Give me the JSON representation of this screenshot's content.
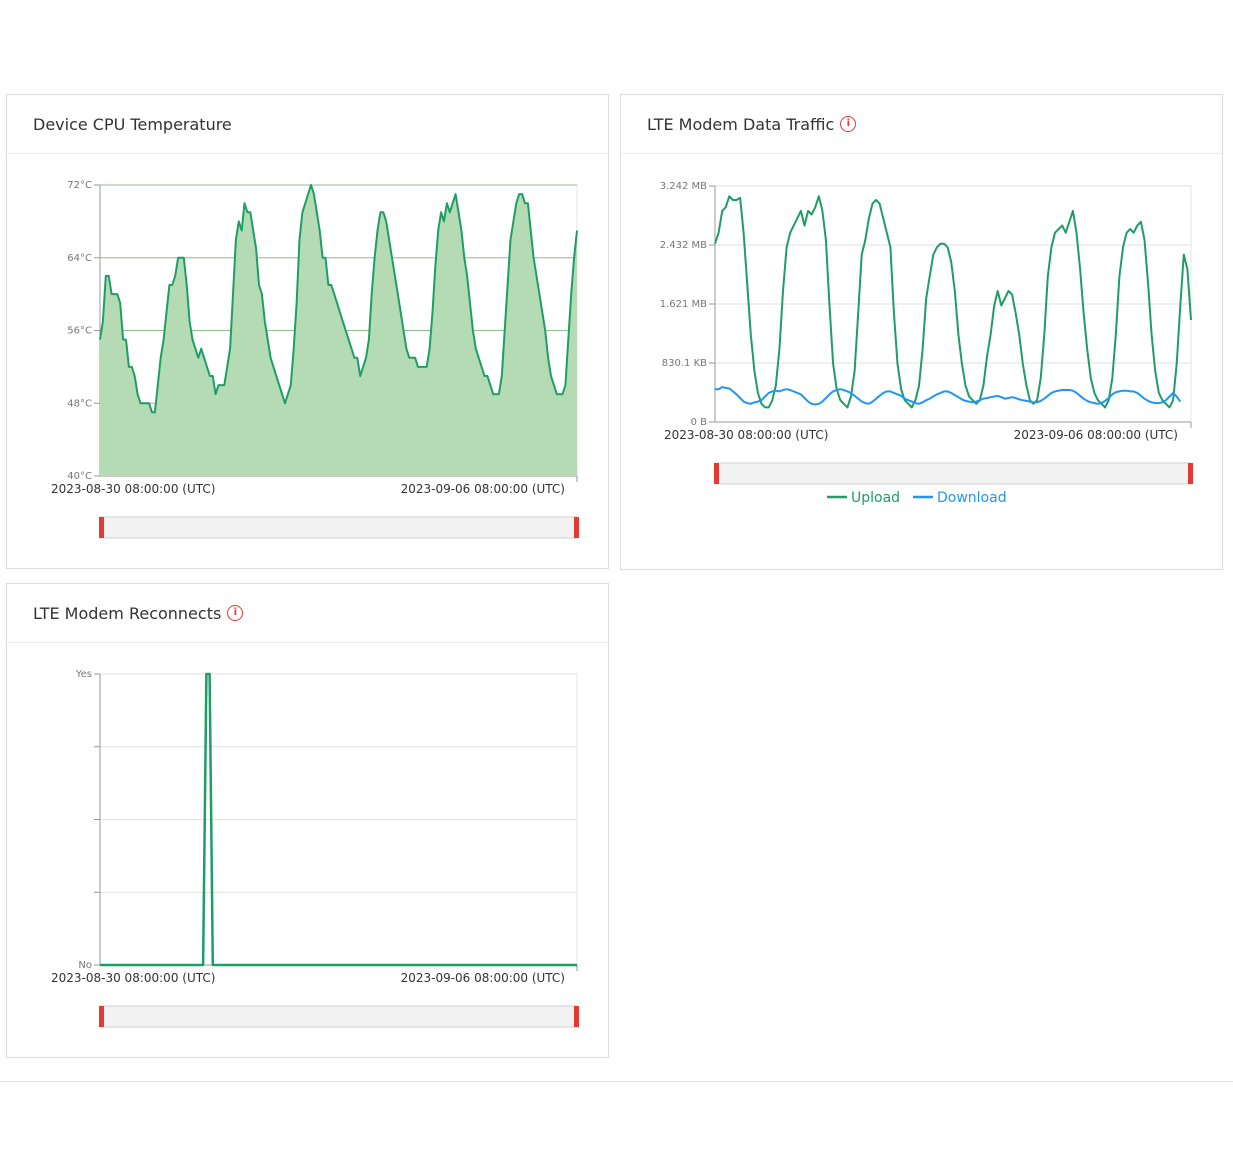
{
  "colors": {
    "green": "#1e9e64",
    "blue": "#2196f3",
    "fill": "#b5dbb5",
    "red": "#e53935"
  },
  "cards": {
    "cpu": {
      "title": "Device CPU Temperature"
    },
    "traffic": {
      "title": "LTE Modem Data Traffic",
      "info_icon": "info-icon"
    },
    "reconnects": {
      "title": "LTE Modem Reconnects",
      "info_icon": "info-icon"
    }
  },
  "chart_data": [
    {
      "type": "area",
      "title": "Device CPU Temperature",
      "yticks": [
        "72°C",
        "64°C",
        "56°C",
        "48°C",
        "40°C"
      ],
      "ylim": [
        40,
        72
      ],
      "xlabels": [
        "2023-08-30 08:00:00 (UTC)",
        "2023-09-06 08:00:00 (UTC)"
      ],
      "grid": true,
      "series": [
        {
          "values": [
            55,
            57,
            62,
            62,
            60,
            60,
            60,
            59,
            55,
            55,
            52,
            52,
            51,
            49,
            48,
            48,
            48,
            48,
            47,
            47,
            50,
            53,
            55,
            58,
            61,
            61,
            62,
            64,
            64,
            64,
            61,
            57,
            55,
            54,
            53,
            54,
            53,
            52,
            51,
            51,
            49,
            50,
            50,
            50,
            52,
            54,
            60,
            66,
            68,
            67,
            70,
            69,
            69,
            67,
            65,
            61,
            60,
            57,
            55,
            53,
            52,
            51,
            50,
            49,
            48,
            49,
            50,
            54,
            59,
            66,
            69,
            70,
            71,
            72,
            71,
            69,
            67,
            64,
            64,
            61,
            61,
            60,
            59,
            58,
            57,
            56,
            55,
            54,
            53,
            53,
            51,
            52,
            53,
            55,
            60,
            64,
            67,
            69,
            69,
            68,
            66,
            64,
            62,
            60,
            58,
            56,
            54,
            53,
            53,
            53,
            52,
            52,
            52,
            52,
            54,
            58,
            63,
            67,
            69,
            68,
            70,
            69,
            70,
            71,
            69,
            67,
            64,
            62,
            59,
            56,
            54,
            53,
            52,
            51,
            51,
            50,
            49,
            49,
            49,
            51,
            56,
            61,
            66,
            68,
            70,
            71,
            71,
            70,
            70,
            67,
            64,
            62,
            60,
            58,
            56,
            53,
            51,
            50,
            49,
            49,
            49,
            50,
            55,
            60,
            64,
            67
          ]
        }
      ]
    },
    {
      "type": "line",
      "title": "LTE Modem Data Traffic",
      "yticks": [
        "3.242 MB",
        "2.432 MB",
        "1.621 MB",
        "830.1 KB",
        "0 B"
      ],
      "ylim": [
        0,
        3.242
      ],
      "xlabels": [
        "2023-08-30 08:00:00 (UTC)",
        "2023-09-06 08:00:00 (UTC)"
      ],
      "legend": [
        "Upload",
        "Download"
      ],
      "legend_position": "bottom",
      "grid": true,
      "series": [
        {
          "name": "Upload",
          "values": [
            2.45,
            2.6,
            2.9,
            2.95,
            3.1,
            3.05,
            3.05,
            3.08,
            2.6,
            1.9,
            1.2,
            0.7,
            0.4,
            0.25,
            0.2,
            0.2,
            0.3,
            0.5,
            1.0,
            1.8,
            2.4,
            2.6,
            2.7,
            2.8,
            2.9,
            2.7,
            2.9,
            2.85,
            2.95,
            3.1,
            2.9,
            2.5,
            1.6,
            0.8,
            0.45,
            0.3,
            0.25,
            0.2,
            0.35,
            0.7,
            1.5,
            2.3,
            2.5,
            2.8,
            3.0,
            3.05,
            3.0,
            2.8,
            2.6,
            2.4,
            1.5,
            0.8,
            0.45,
            0.3,
            0.25,
            0.2,
            0.3,
            0.5,
            1.0,
            1.7,
            2.0,
            2.3,
            2.4,
            2.45,
            2.45,
            2.4,
            2.2,
            1.8,
            1.2,
            0.8,
            0.5,
            0.35,
            0.3,
            0.25,
            0.3,
            0.5,
            0.9,
            1.2,
            1.6,
            1.8,
            1.6,
            1.7,
            1.8,
            1.75,
            1.5,
            1.2,
            0.8,
            0.5,
            0.3,
            0.25,
            0.3,
            0.6,
            1.2,
            2.0,
            2.4,
            2.6,
            2.65,
            2.7,
            2.6,
            2.75,
            2.9,
            2.6,
            2.1,
            1.5,
            1.0,
            0.6,
            0.4,
            0.3,
            0.25,
            0.2,
            0.3,
            0.6,
            1.2,
            2.0,
            2.4,
            2.6,
            2.65,
            2.6,
            2.7,
            2.75,
            2.5,
            1.9,
            1.2,
            0.7,
            0.4,
            0.3,
            0.25,
            0.2,
            0.3,
            0.8,
            1.6,
            2.3,
            2.1,
            1.4
          ]
        },
        {
          "name": "Download",
          "values": [
            0.45,
            0.45,
            0.48,
            0.47,
            0.46,
            0.42,
            0.38,
            0.33,
            0.28,
            0.26,
            0.25,
            0.27,
            0.28,
            0.3,
            0.35,
            0.4,
            0.42,
            0.43,
            0.42,
            0.44,
            0.45,
            0.44,
            0.42,
            0.4,
            0.38,
            0.33,
            0.28,
            0.25,
            0.24,
            0.25,
            0.28,
            0.33,
            0.38,
            0.42,
            0.44,
            0.45,
            0.44,
            0.42,
            0.4,
            0.36,
            0.32,
            0.28,
            0.26,
            0.25,
            0.28,
            0.32,
            0.36,
            0.4,
            0.42,
            0.42,
            0.4,
            0.38,
            0.36,
            0.32,
            0.3,
            0.28,
            0.26,
            0.25,
            0.27,
            0.3,
            0.32,
            0.35,
            0.38,
            0.4,
            0.42,
            0.42,
            0.4,
            0.37,
            0.34,
            0.31,
            0.29,
            0.28,
            0.27,
            0.28,
            0.3,
            0.32,
            0.33,
            0.34,
            0.35,
            0.36,
            0.34,
            0.32,
            0.33,
            0.34,
            0.33,
            0.31,
            0.3,
            0.29,
            0.28,
            0.27,
            0.27,
            0.29,
            0.32,
            0.36,
            0.4,
            0.42,
            0.43,
            0.44,
            0.44,
            0.44,
            0.43,
            0.4,
            0.36,
            0.32,
            0.29,
            0.27,
            0.26,
            0.25,
            0.26,
            0.29,
            0.33,
            0.38,
            0.41,
            0.42,
            0.43,
            0.43,
            0.42,
            0.42,
            0.4,
            0.36,
            0.32,
            0.29,
            0.27,
            0.26,
            0.26,
            0.27,
            0.3,
            0.35,
            0.4,
            0.35,
            0.28
          ]
        }
      ]
    },
    {
      "type": "line",
      "title": "LTE Modem Reconnects",
      "yticks": [
        "Yes",
        "",
        "",
        "",
        "No"
      ],
      "ylim": [
        0,
        1
      ],
      "xlabels": [
        "2023-08-30 08:00:00 (UTC)",
        "2023-09-06 08:00:00 (UTC)"
      ],
      "grid": true,
      "series": [
        {
          "values": [
            0,
            0,
            0,
            0,
            0,
            0,
            0,
            0,
            0,
            0,
            0,
            0,
            0,
            0,
            0,
            0,
            0,
            0,
            0,
            0,
            0,
            0,
            0,
            0,
            0,
            0,
            0,
            0,
            0,
            0,
            0,
            0,
            0,
            1,
            1,
            0,
            0,
            0,
            0,
            0,
            0,
            0,
            0,
            0,
            0,
            0,
            0,
            0,
            0,
            0,
            0,
            0,
            0,
            0,
            0,
            0,
            0,
            0,
            0,
            0,
            0,
            0,
            0,
            0,
            0,
            0,
            0,
            0,
            0,
            0,
            0,
            0,
            0,
            0,
            0,
            0,
            0,
            0,
            0,
            0,
            0,
            0,
            0,
            0,
            0,
            0,
            0,
            0,
            0,
            0,
            0,
            0,
            0,
            0,
            0,
            0,
            0,
            0,
            0,
            0,
            0,
            0,
            0,
            0,
            0,
            0,
            0,
            0,
            0,
            0,
            0,
            0,
            0,
            0,
            0,
            0,
            0,
            0,
            0,
            0,
            0,
            0,
            0,
            0,
            0,
            0,
            0,
            0,
            0,
            0,
            0,
            0,
            0,
            0,
            0,
            0,
            0,
            0,
            0,
            0,
            0,
            0,
            0,
            0,
            0,
            0,
            0,
            0,
            0
          ]
        }
      ]
    }
  ]
}
